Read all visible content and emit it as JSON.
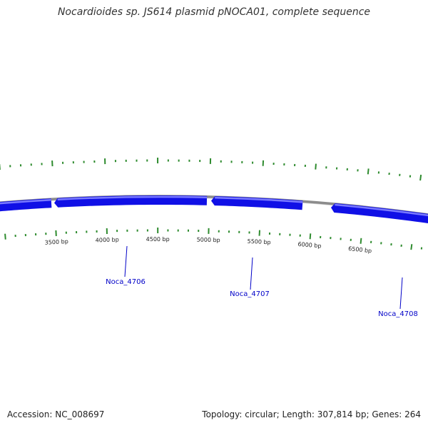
{
  "title": "Nocardioides sp. JS614 plasmid pNOCA01, complete sequence",
  "footer": {
    "accession": "Accession: NC_008697",
    "stats": "Topology: circular; Length: 307,814 bp; Genes: 264"
  },
  "colors": {
    "backbone": "#8c8c8c",
    "gene_fill": "#1010e6",
    "gene_highlight": "#7a7aff",
    "tick": "#2e8b2e",
    "label": "#0000c8"
  },
  "ticks": [
    {
      "bp": 3500,
      "label": "3500 bp"
    },
    {
      "bp": 4000,
      "label": "4000 bp"
    },
    {
      "bp": 4500,
      "label": "4500 bp"
    },
    {
      "bp": 5000,
      "label": "5000 bp"
    },
    {
      "bp": 5500,
      "label": "5500 bp"
    },
    {
      "bp": 6000,
      "label": "6000 bp"
    },
    {
      "bp": 6500,
      "label": "6500 bp"
    }
  ],
  "genes": [
    {
      "strand": "-"
    },
    {
      "strand": "-",
      "label": "Noca_4706"
    },
    {
      "strand": "-",
      "label": "Noca_4707"
    },
    {
      "strand": "-",
      "label": "Noca_4708"
    }
  ]
}
